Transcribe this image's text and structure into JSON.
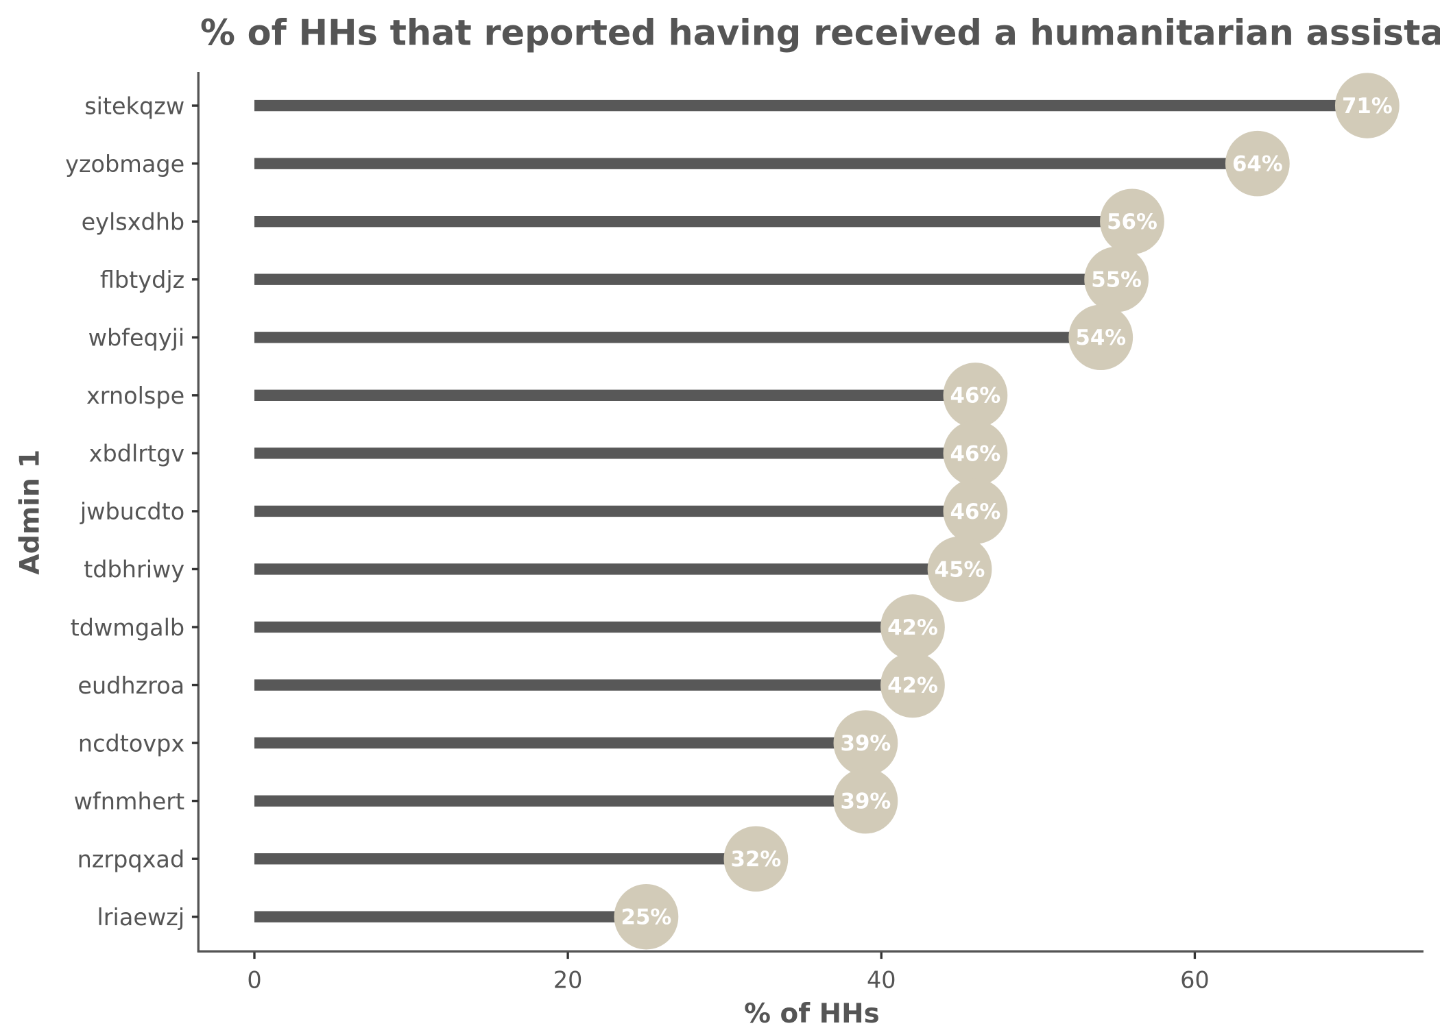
{
  "chart_data": {
    "type": "lollipop",
    "title": "% of HHs that reported having received a humanitarian assistance",
    "xlabel": "% of HHs",
    "ylabel": "Admin 1",
    "xlim": [
      -3.5,
      74
    ],
    "xticks": [
      0,
      20,
      40,
      60
    ],
    "grid": false,
    "categories": [
      "sitekqzw",
      "yzobmage",
      "eylsxdhb",
      "flbtydjz",
      "wbfeqyji",
      "xrnolspe",
      "xbdlrtgv",
      "jwbucdto",
      "tdbhriwy",
      "tdwmgalb",
      "eudhzroa",
      "ncdtovpx",
      "wfnmhert",
      "nzrpqxad",
      "lriaewzj"
    ],
    "values": [
      71,
      64,
      56,
      55,
      54,
      46,
      46,
      46,
      45,
      42,
      42,
      39,
      39,
      32,
      25
    ],
    "labels": [
      "71%",
      "64%",
      "56%",
      "55%",
      "54%",
      "46%",
      "46%",
      "46%",
      "45%",
      "42%",
      "42%",
      "39%",
      "39%",
      "32%",
      "25%"
    ],
    "colors": {
      "stem": "#585858",
      "point": "#D2CBB8",
      "label": "#FFFFFF",
      "text": "#555555"
    }
  }
}
